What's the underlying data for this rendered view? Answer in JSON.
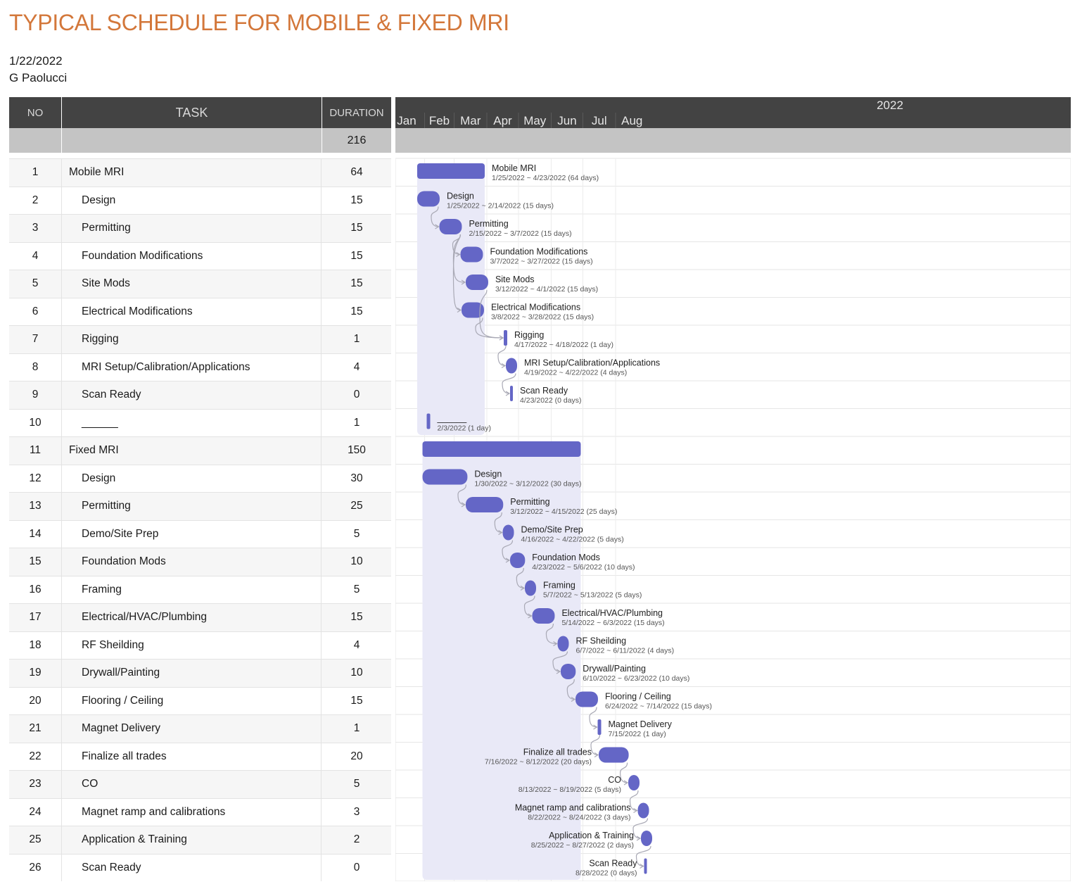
{
  "title": "TYPICAL SCHEDULE FOR MOBILE & FIXED MRI",
  "date": "1/22/2022",
  "author": "G Paolucci",
  "table": {
    "headers": {
      "no": "NO",
      "task": "TASK",
      "duration": "DURATION"
    },
    "total_duration": "216"
  },
  "colors": {
    "bar": "#6466c6",
    "group_shade": "#e9e9f7",
    "header": "#434343",
    "summary": "#c4c4c4",
    "title": "#d3773a"
  },
  "chart_data": {
    "type": "gantt",
    "year_label": "2022",
    "months": [
      "Jan",
      "Feb",
      "Mar",
      "Apr",
      "May",
      "Jun",
      "Jul",
      "Aug"
    ],
    "tasks": [
      {
        "no": "1",
        "name": "Mobile MRI",
        "duration": "64",
        "start": "2022-01-25",
        "days": 64,
        "group": true,
        "label": "Mobile MRI",
        "sub": "1/25/2022 ~ 4/23/2022 (64 days)",
        "label_side": "right"
      },
      {
        "no": "2",
        "name": "Design",
        "duration": "15",
        "start": "2022-01-25",
        "days": 15,
        "label": "Design",
        "sub": "1/25/2022 ~ 2/14/2022 (15 days)",
        "label_side": "right"
      },
      {
        "no": "3",
        "name": "Permitting",
        "duration": "15",
        "start": "2022-02-15",
        "days": 15,
        "label": "Permitting",
        "sub": "2/15/2022 ~ 3/7/2022 (15 days)",
        "label_side": "right"
      },
      {
        "no": "4",
        "name": "Foundation Modifications",
        "duration": "15",
        "start": "2022-03-07",
        "days": 15,
        "label": "Foundation Modifications",
        "sub": "3/7/2022 ~ 3/27/2022 (15 days)",
        "label_side": "right"
      },
      {
        "no": "5",
        "name": "Site Mods",
        "duration": "15",
        "start": "2022-03-12",
        "days": 15,
        "label": "Site Mods",
        "sub": "3/12/2022 ~ 4/1/2022 (15 days)",
        "label_side": "right"
      },
      {
        "no": "6",
        "name": "Electrical Modifications",
        "duration": "15",
        "start": "2022-03-08",
        "days": 15,
        "label": "Electrical Modifications",
        "sub": "3/8/2022 ~ 3/28/2022 (15 days)",
        "label_side": "right"
      },
      {
        "no": "7",
        "name": "Rigging",
        "duration": "1",
        "start": "2022-04-17",
        "days": 1,
        "label": "Rigging",
        "sub": "4/17/2022 ~ 4/18/2022 (1 day)",
        "label_side": "right"
      },
      {
        "no": "8",
        "name": "MRI Setup/Calibration/Applications",
        "duration": "4",
        "start": "2022-04-19",
        "days": 4,
        "label": "MRI Setup/Calibration/Applications",
        "sub": "4/19/2022 ~ 4/22/2022 (4 days)",
        "label_side": "right"
      },
      {
        "no": "9",
        "name": "Scan Ready",
        "duration": "0",
        "start": "2022-04-23",
        "days": 0,
        "label": "Scan Ready",
        "sub": "4/23/2022 (0 days)",
        "label_side": "right"
      },
      {
        "no": "10",
        "name": "______",
        "duration": "1",
        "start": "2022-02-03",
        "days": 1,
        "label": "______",
        "sub": "2/3/2022 (1 day)",
        "label_side": "right"
      },
      {
        "no": "11",
        "name": "Fixed MRI",
        "duration": "150",
        "start": "2022-01-30",
        "days": 150,
        "group": true,
        "label": "",
        "sub": "",
        "label_side": "none"
      },
      {
        "no": "12",
        "name": "Design",
        "duration": "30",
        "start": "2022-01-30",
        "days": 30,
        "label": "Design",
        "sub": "1/30/2022 ~ 3/12/2022 (30 days)",
        "label_side": "right"
      },
      {
        "no": "13",
        "name": "Permitting",
        "duration": "25",
        "start": "2022-03-12",
        "days": 25,
        "label": "Permitting",
        "sub": "3/12/2022 ~ 4/15/2022 (25 days)",
        "label_side": "right"
      },
      {
        "no": "14",
        "name": "Demo/Site Prep",
        "duration": "5",
        "start": "2022-04-16",
        "days": 5,
        "label": "Demo/Site Prep",
        "sub": "4/16/2022 ~ 4/22/2022 (5 days)",
        "label_side": "right"
      },
      {
        "no": "15",
        "name": "Foundation Mods",
        "duration": "10",
        "start": "2022-04-23",
        "days": 10,
        "label": "Foundation Mods",
        "sub": "4/23/2022 ~ 5/6/2022 (10 days)",
        "label_side": "right"
      },
      {
        "no": "16",
        "name": "Framing",
        "duration": "5",
        "start": "2022-05-07",
        "days": 5,
        "label": "Framing",
        "sub": "5/7/2022 ~ 5/13/2022 (5 days)",
        "label_side": "right"
      },
      {
        "no": "17",
        "name": "Electrical/HVAC/Plumbing",
        "duration": "15",
        "start": "2022-05-14",
        "days": 15,
        "label": "Electrical/HVAC/Plumbing",
        "sub": "5/14/2022 ~ 6/3/2022 (15 days)",
        "label_side": "right"
      },
      {
        "no": "18",
        "name": "RF Sheilding",
        "duration": "4",
        "start": "2022-06-07",
        "days": 4,
        "label": "RF Sheilding",
        "sub": "6/7/2022 ~ 6/11/2022 (4 days)",
        "label_side": "right"
      },
      {
        "no": "19",
        "name": "Drywall/Painting",
        "duration": "10",
        "start": "2022-06-10",
        "days": 10,
        "label": "Drywall/Painting",
        "sub": "6/10/2022 ~ 6/23/2022 (10 days)",
        "label_side": "right"
      },
      {
        "no": "20",
        "name": "Flooring / Ceiling",
        "duration": "15",
        "start": "2022-06-24",
        "days": 15,
        "label": "Flooring / Ceiling",
        "sub": "6/24/2022 ~ 7/14/2022 (15 days)",
        "label_side": "right"
      },
      {
        "no": "21",
        "name": "Magnet Delivery",
        "duration": "1",
        "start": "2022-07-15",
        "days": 1,
        "label": "Magnet Delivery",
        "sub": "7/15/2022 (1 day)",
        "label_side": "right"
      },
      {
        "no": "22",
        "name": "Finalize all trades",
        "duration": "20",
        "start": "2022-07-16",
        "days": 20,
        "label": "Finalize all trades",
        "sub": "7/16/2022 ~ 8/12/2022 (20 days)",
        "label_side": "left"
      },
      {
        "no": "23",
        "name": "CO",
        "duration": "5",
        "start": "2022-08-13",
        "days": 5,
        "label": "CO",
        "sub": "8/13/2022 ~ 8/19/2022 (5 days)",
        "label_side": "left"
      },
      {
        "no": "24",
        "name": "Magnet ramp and calibrations",
        "duration": "3",
        "start": "2022-08-22",
        "days": 3,
        "label": "Magnet ramp and calibrations",
        "sub": "8/22/2022 ~ 8/24/2022 (3 days)",
        "label_side": "left"
      },
      {
        "no": "25",
        "name": "Application & Training",
        "duration": "2",
        "start": "2022-08-25",
        "days": 2,
        "label": "Application & Training",
        "sub": "8/25/2022 ~ 8/27/2022 (2 days)",
        "label_side": "left"
      },
      {
        "no": "26",
        "name": "Scan Ready",
        "duration": "0",
        "start": "2022-08-28",
        "days": 0,
        "label": "Scan Ready",
        "sub": "8/28/2022 (0 days)",
        "label_side": "left"
      }
    ]
  }
}
